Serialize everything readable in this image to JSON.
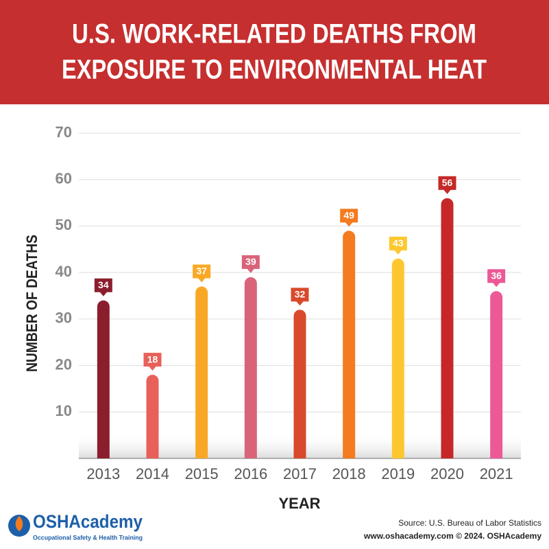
{
  "chart_data": {
    "type": "bar",
    "title": [
      "U.S. WORK-RELATED DEATHS FROM",
      "EXPOSURE TO ENVIRONMENTAL HEAT"
    ],
    "categories": [
      "2013",
      "2014",
      "2015",
      "2016",
      "2017",
      "2018",
      "2019",
      "2020",
      "2021"
    ],
    "values": [
      34,
      18,
      37,
      39,
      32,
      49,
      43,
      56,
      36
    ],
    "colors": [
      "#8b1e2d",
      "#e8605a",
      "#f9a825",
      "#d9647a",
      "#d84a2b",
      "#f47b20",
      "#fdc82f",
      "#c62828",
      "#ec5a95"
    ],
    "ylim": [
      0,
      70
    ],
    "yticks": [
      10,
      20,
      30,
      40,
      50,
      60,
      70
    ],
    "grid": true,
    "ylabel": "NUMBER OF DEATHS",
    "xlabel": "YEAR",
    "source": "Source: U.S. Bureau of Labor Statistics",
    "footer": "www.oshacademy.com © 2024. OSHAcademy",
    "logo": {
      "name": "OSHAcademy",
      "tagline": "Occupational Safety & Health Training"
    }
  }
}
